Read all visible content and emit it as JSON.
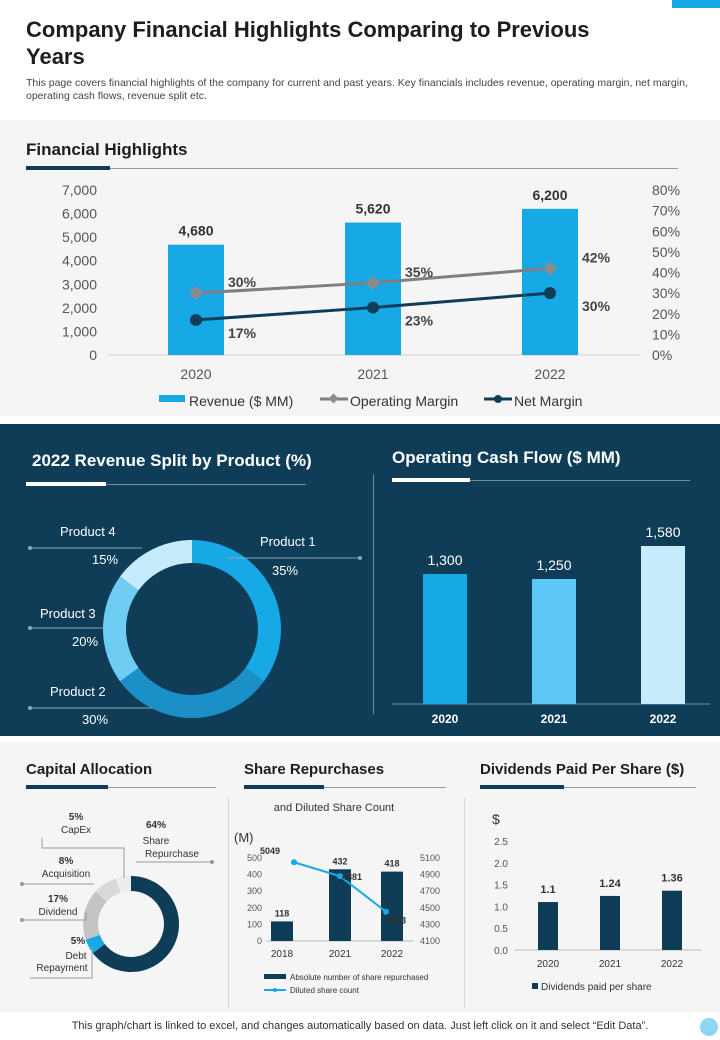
{
  "header": {
    "title": "Company Financial Highlights Comparing to Previous Years",
    "subtitle": "This page covers financial highlights of the company for  current and past years. Key financials includes revenue, operating margin, net margin, operating cash flows, revenue split etc."
  },
  "colors": {
    "accent": "#16a9e6",
    "dark": "#0f3d57",
    "gray": "#7f7f7f"
  },
  "footer": {
    "text": "This graph/chart is linked to excel,  and changes automatically based on data. Just left click on it and select “Edit Data”."
  },
  "chart_data": [
    {
      "id": "financial-highlights",
      "type": "bar",
      "title": "Financial Highlights",
      "categories": [
        "2020",
        "2021",
        "2022"
      ],
      "series": [
        {
          "name": "Revenue ($ MM)",
          "type": "bar",
          "axis": "left",
          "values": [
            4680,
            5620,
            6200
          ],
          "labels": [
            "4,680",
            "5,620",
            "6,200"
          ]
        },
        {
          "name": "Operating Margin",
          "type": "line",
          "axis": "right",
          "values": [
            30,
            35,
            42
          ],
          "labels": [
            "30%",
            "35%",
            "42%"
          ]
        },
        {
          "name": "Net Margin",
          "type": "line",
          "axis": "right",
          "values": [
            17,
            23,
            30
          ],
          "labels": [
            "17%",
            "23%",
            "30%"
          ]
        }
      ],
      "ylim": [
        0,
        7000
      ],
      "yticks": [
        "7,000",
        "6,000",
        "5,000",
        "4,000",
        "3,000",
        "2,000",
        "1,000",
        "0"
      ],
      "y2lim": [
        0,
        80
      ],
      "y2ticks": [
        "80%",
        "70%",
        "60%",
        "50%",
        "40%",
        "30%",
        "20%",
        "10%",
        "0%"
      ]
    },
    {
      "id": "revenue-split",
      "type": "pie",
      "title": "2022 Revenue Split by Product (%)",
      "slices": [
        {
          "name": "Product 1",
          "value": 35,
          "label": "35%"
        },
        {
          "name": "Product 2",
          "value": 30,
          "label": "30%"
        },
        {
          "name": "Product 3",
          "value": 20,
          "label": "20%"
        },
        {
          "name": "Product 4",
          "value": 15,
          "label": "15%"
        }
      ]
    },
    {
      "id": "operating-cash-flow",
      "type": "bar",
      "title": "Operating Cash Flow ($ MM)",
      "categories": [
        "2020",
        "2021",
        "2022"
      ],
      "values": [
        1300,
        1250,
        1580
      ],
      "labels": [
        "1,300",
        "1,250",
        "1,580"
      ],
      "ylim": [
        0,
        1800
      ]
    },
    {
      "id": "capital-allocation",
      "type": "pie",
      "title": "Capital  Allocation",
      "slices": [
        {
          "name": "Share Repurchase",
          "value": 64,
          "label": "64%",
          "lines": [
            "Share",
            "Repurchase"
          ]
        },
        {
          "name": "Debt Repayment",
          "value": 5,
          "label": "5%",
          "lines": [
            "Debt",
            "Repayment"
          ]
        },
        {
          "name": "Dividend",
          "value": 17,
          "label": "17%",
          "lines": [
            "Dividend"
          ]
        },
        {
          "name": "Acquisition",
          "value": 8,
          "label": "8%",
          "lines": [
            "Acquisition"
          ]
        },
        {
          "name": "CapEx",
          "value": 5,
          "label": "5%",
          "lines": [
            "CapEx"
          ]
        }
      ]
    },
    {
      "id": "share-repurchases",
      "type": "bar",
      "title": "Share Repurchases",
      "subtitle": "and Diluted Share Count",
      "unit": "(M)",
      "categories": [
        "2018",
        "2021",
        "2022"
      ],
      "series": [
        {
          "name": "Absolute number of share repurchased",
          "type": "bar",
          "axis": "left",
          "values": [
            118,
            432,
            418
          ]
        },
        {
          "name": "Diluted share count",
          "type": "line",
          "axis": "right",
          "values": [
            5049,
            4881,
            4453
          ]
        }
      ],
      "ylim": [
        0,
        500
      ],
      "yticks": [
        "500",
        "400",
        "300",
        "200",
        "100",
        "0"
      ],
      "y2lim": [
        4100,
        5100
      ],
      "y2ticks": [
        "5100",
        "4900",
        "4700",
        "4500",
        "4300",
        "4100"
      ]
    },
    {
      "id": "dividends-per-share",
      "type": "bar",
      "title": "Dividends Paid Per Share ($)",
      "unit": "$",
      "categories": [
        "2020",
        "2021",
        "2022"
      ],
      "values": [
        1.1,
        1.24,
        1.36
      ],
      "labels": [
        "1.1",
        "1.24",
        "1.36"
      ],
      "ylim": [
        0,
        2.5
      ],
      "yticks": [
        "2.5",
        "2.0",
        "1.5",
        "1.0",
        "0.5",
        "0.0"
      ],
      "legend": "Dividends paid per share"
    }
  ]
}
